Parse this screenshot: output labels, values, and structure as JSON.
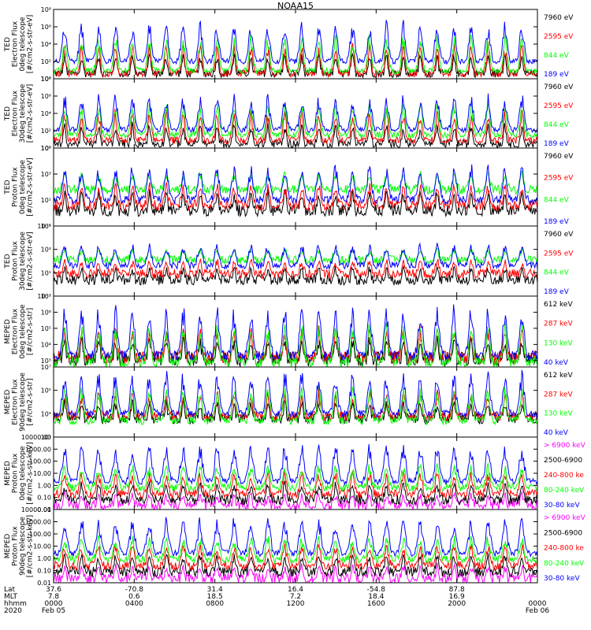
{
  "title": "NOAA15",
  "colors": {
    "black": "#000000",
    "blue": "#0000ff",
    "red": "#ff0000",
    "green": "#00ff00",
    "magenta": "#ff00ff"
  },
  "chart_data": [
    {
      "type": "line",
      "title": "NOAA15",
      "ylabel": "TED\nElectron Flux\n0deg telescope\n[#/cm2-s-str-eV]",
      "ylog": true,
      "yticks": [
        "10⁰",
        "10²",
        "10⁴",
        "10⁶",
        "10⁸"
      ],
      "ytick_exp": [
        0,
        2,
        4,
        6,
        8
      ],
      "ylim_exp": [
        0,
        8
      ],
      "series": [
        {
          "name": "7960 eV",
          "color": "#000000",
          "base": 0.6,
          "peak": 3.0
        },
        {
          "name": "2595 eV",
          "color": "#ff0000",
          "base": 0.6,
          "peak": 4.3
        },
        {
          "name": "844 eV",
          "color": "#00ff00",
          "base": 0.9,
          "peak": 5.3
        },
        {
          "name": "189 eV",
          "color": "#0000ff",
          "base": 2.0,
          "peak": 6.8
        }
      ]
    },
    {
      "type": "line",
      "ylabel": "TED\nElectron Flux\n30deg telescope\n[#/cm2-s-str-eV]",
      "ylog": true,
      "yticks": [
        "10⁰",
        "10²",
        "10⁴",
        "10⁶",
        "10⁸"
      ],
      "ytick_exp": [
        0,
        2,
        4,
        6,
        8
      ],
      "ylim_exp": [
        0,
        8
      ],
      "series": [
        {
          "name": "7960 eV",
          "color": "#000000",
          "base": 0.5,
          "peak": 3.0
        },
        {
          "name": "2595 eV",
          "color": "#ff0000",
          "base": 0.9,
          "peak": 4.6
        },
        {
          "name": "844 eV",
          "color": "#00ff00",
          "base": 1.5,
          "peak": 5.5
        },
        {
          "name": "189 eV",
          "color": "#0000ff",
          "base": 2.1,
          "peak": 6.3
        }
      ]
    },
    {
      "type": "line",
      "ylabel": "TED\nProton Flux\n0deg telescope\n[#/cm2-s-str-eV]",
      "ylog": true,
      "yticks": [
        "10⁻¹",
        "10¹",
        "10³",
        "10⁵"
      ],
      "ytick_exp": [
        -1,
        1,
        3,
        5
      ],
      "ylim_exp": [
        -1,
        5
      ],
      "series": [
        {
          "name": "7960 eV",
          "color": "#000000",
          "base": 0.2,
          "peak": 1.8
        },
        {
          "name": "2595 eV",
          "color": "#ff0000",
          "base": 0.6,
          "peak": 2.4
        },
        {
          "name": "844 eV",
          "color": "#00ff00",
          "base": 1.8,
          "peak": 3.2
        },
        {
          "name": "189 eV",
          "color": "#0000ff",
          "base": 1.0,
          "peak": 3.8
        }
      ]
    },
    {
      "type": "line",
      "ylabel": "TED\nProton Flux\n30deg telescope\n[#/cm2-s-str-eV]",
      "ylog": true,
      "yticks": [
        "10⁻¹",
        "10¹",
        "10³",
        "10⁵"
      ],
      "ytick_exp": [
        -1,
        1,
        3,
        5
      ],
      "ylim_exp": [
        -1,
        5
      ],
      "series": [
        {
          "name": "7960 eV",
          "color": "#000000",
          "base": 0.4,
          "peak": 1.6
        },
        {
          "name": "2595 eV",
          "color": "#ff0000",
          "base": 0.9,
          "peak": 2.2
        },
        {
          "name": "844 eV",
          "color": "#00ff00",
          "base": 2.1,
          "peak": 3.1
        },
        {
          "name": "189 eV",
          "color": "#0000ff",
          "base": 1.6,
          "peak": 3.6
        }
      ]
    },
    {
      "type": "line",
      "ylabel": "MEPED\nElectron Flux\n0deg telescope\n[#/cm2-s-str]",
      "ylog": true,
      "yticks": [
        "10³",
        "10⁴",
        "10⁵",
        "10⁶",
        "10⁷"
      ],
      "ytick_exp": [
        3,
        4,
        5,
        6,
        7
      ],
      "ylim_exp": [
        2.6,
        7
      ],
      "series": [
        {
          "name": "612 keV",
          "color": "#000000",
          "base": 3.1,
          "peak": 4.5
        },
        {
          "name": "287 keV",
          "color": "#ff0000",
          "base": 3.2,
          "peak": 5.2
        },
        {
          "name": "130 keV",
          "color": "#00ff00",
          "base": 2.9,
          "peak": 5.4
        },
        {
          "name": "40 keV",
          "color": "#0000ff",
          "base": 3.3,
          "peak": 6.5
        }
      ]
    },
    {
      "type": "line",
      "ylabel": "MEPED\nElectron Flux\n90deg telescope\n[#/cm2-s-str]",
      "ylog": true,
      "yticks": [
        "10¹",
        "10³",
        "10⁵",
        "10⁷"
      ],
      "ytick_exp": [
        1,
        3,
        5,
        7
      ],
      "ylim_exp": [
        1,
        7
      ],
      "series": [
        {
          "name": "612 keV",
          "color": "#000000",
          "base": 2.6,
          "peak": 4.2
        },
        {
          "name": "287 keV",
          "color": "#ff0000",
          "base": 2.8,
          "peak": 5.0
        },
        {
          "name": "130 keV",
          "color": "#00ff00",
          "base": 2.4,
          "peak": 5.5
        },
        {
          "name": "40 keV",
          "color": "#0000ff",
          "base": 3.0,
          "peak": 6.8
        }
      ]
    },
    {
      "type": "line",
      "ylabel": "MEPED\nProton Flux\n0deg telescope\n[#/cm2-s-str-keV]",
      "ylog": true,
      "yticks": [
        "0.01",
        "0.10",
        "1.00",
        "10.00",
        "100.00",
        "1000.00",
        "10000.00"
      ],
      "ytick_exp": [
        -2,
        -1,
        0,
        1,
        2,
        3,
        4
      ],
      "ylim_exp": [
        -2,
        4
      ],
      "series": [
        {
          "name": "> 6900 keV",
          "color": "#ff00ff",
          "base": -1.6,
          "peak": -0.6
        },
        {
          "name": "2500-6900",
          "color": "#000000",
          "base": -1.2,
          "peak": 0.3
        },
        {
          "name": "240-800 ke",
          "color": "#ff0000",
          "base": -0.7,
          "peak": 1.2
        },
        {
          "name": "80-240 keV",
          "color": "#00ff00",
          "base": -0.2,
          "peak": 1.8
        },
        {
          "name": "30-80 keV",
          "color": "#0000ff",
          "base": 0.3,
          "peak": 3.5
        }
      ]
    },
    {
      "type": "line",
      "ylabel": "MEPED\nProton Flux\n90deg telescope\n[#/cm2-s-str-keV]",
      "ylog": true,
      "yticks": [
        "0.01",
        "0.10",
        "1.00",
        "10.00",
        "100.00",
        "1000.00",
        "10000.00"
      ],
      "ytick_exp": [
        -2,
        -1,
        0,
        1,
        2,
        3,
        4
      ],
      "ylim_exp": [
        -2,
        4
      ],
      "series": [
        {
          "name": "> 6900 keV",
          "color": "#ff00ff",
          "base": -1.6,
          "peak": -0.5
        },
        {
          "name": "2500-6900",
          "color": "#000000",
          "base": -1.1,
          "peak": 0.4
        },
        {
          "name": "240-800 ke",
          "color": "#ff0000",
          "base": -0.6,
          "peak": 1.3
        },
        {
          "name": "80-240 keV",
          "color": "#00ff00",
          "base": -0.1,
          "peak": 1.9
        },
        {
          "name": "30-80 keV",
          "color": "#0000ff",
          "base": 0.4,
          "peak": 3.4
        }
      ]
    }
  ],
  "xaxis": {
    "row_labels": [
      "Lat",
      "MLT",
      "hhmm",
      "2020"
    ],
    "ticks": [
      {
        "hour": 0,
        "lat": "37.6",
        "mlt": "7.8",
        "hhmm": "0000",
        "date": "Feb 05"
      },
      {
        "hour": 4,
        "lat": "-70.8",
        "mlt": "0.6",
        "hhmm": "0400",
        "date": ""
      },
      {
        "hour": 8,
        "lat": "31.4",
        "mlt": "18.5",
        "hhmm": "0800",
        "date": ""
      },
      {
        "hour": 12,
        "lat": "16.4",
        "mlt": "7.2",
        "hhmm": "1200",
        "date": ""
      },
      {
        "hour": 16,
        "lat": "-54.8",
        "mlt": "18.4",
        "hhmm": "1600",
        "date": ""
      },
      {
        "hour": 20,
        "lat": "87.8",
        "mlt": "16.9",
        "hhmm": "2000",
        "date": ""
      },
      {
        "hour": 24,
        "lat": "",
        "mlt": "",
        "hhmm": "0000",
        "date": "Feb 06"
      }
    ],
    "xlim_hours": [
      0,
      24
    ]
  }
}
